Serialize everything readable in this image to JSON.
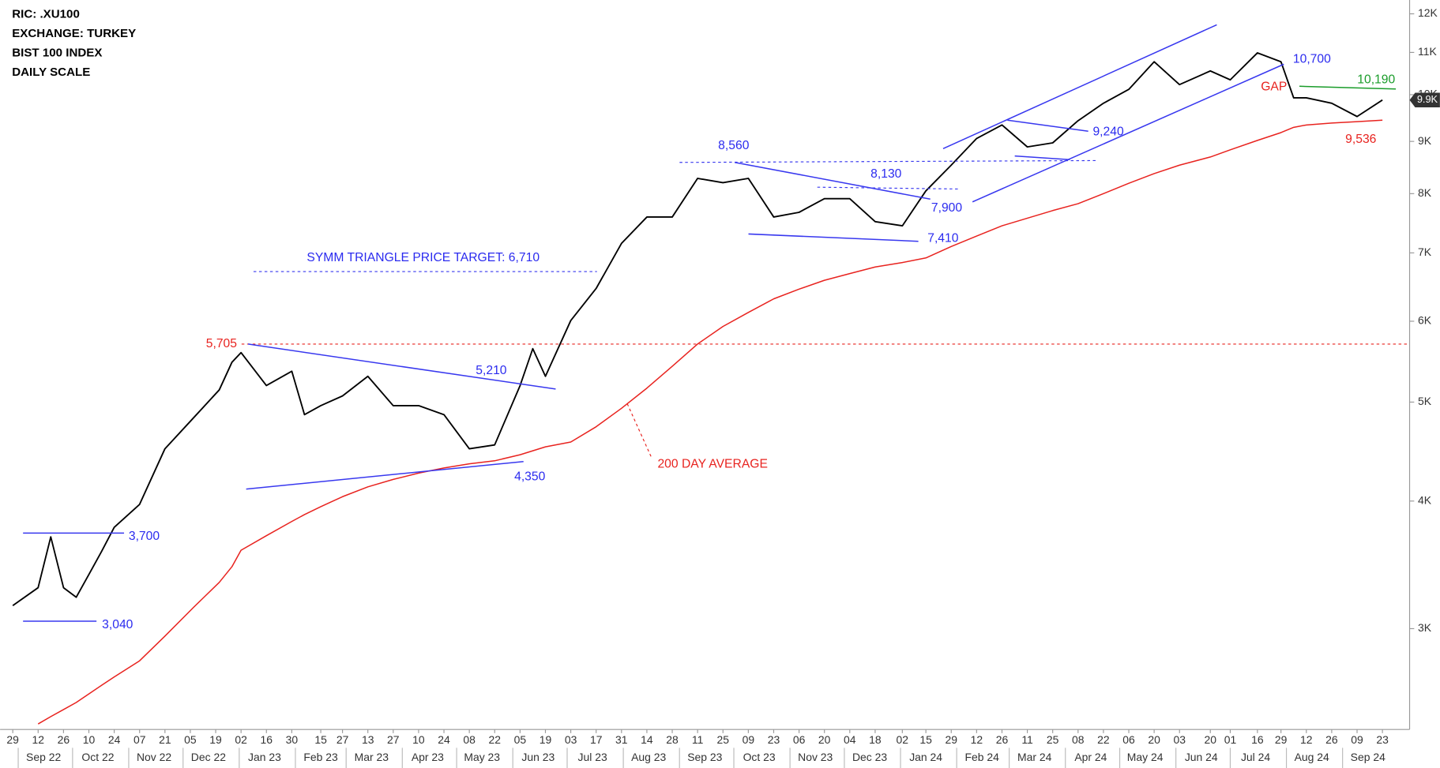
{
  "info": [
    "RIC: .XU100",
    "EXCHANGE: TURKEY",
    "BIST 100 INDEX",
    "DAILY SCALE"
  ],
  "chart_data": {
    "type": "line",
    "log_scale": true,
    "grid": false,
    "xlim": [
      "2022-08-22",
      "2024-10-08"
    ],
    "ylim": [
      2390,
      12380
    ],
    "yticks": [
      {
        "value": 3000,
        "label": "3K"
      },
      {
        "value": 4000,
        "label": "4K"
      },
      {
        "value": 5000,
        "label": "5K"
      },
      {
        "value": 6000,
        "label": "6K"
      },
      {
        "value": 7000,
        "label": "7K"
      },
      {
        "value": 8000,
        "label": "8K"
      },
      {
        "value": 9000,
        "label": "9K"
      },
      {
        "value": 10000,
        "label": "10K"
      },
      {
        "value": 11000,
        "label": "11K"
      },
      {
        "value": 12000,
        "label": "12K"
      }
    ],
    "xticks": [
      {
        "value": "2022-08-29",
        "label": "29"
      },
      {
        "value": "2022-09-12",
        "label": "12"
      },
      {
        "value": "2022-09-26",
        "label": "26"
      },
      {
        "value": "2022-10-10",
        "label": "10"
      },
      {
        "value": "2022-10-24",
        "label": "24"
      },
      {
        "value": "2022-11-07",
        "label": "07"
      },
      {
        "value": "2022-11-21",
        "label": "21"
      },
      {
        "value": "2022-12-05",
        "label": "05"
      },
      {
        "value": "2022-12-19",
        "label": "19"
      },
      {
        "value": "2023-01-02",
        "label": "02"
      },
      {
        "value": "2023-01-16",
        "label": "16"
      },
      {
        "value": "2023-01-30",
        "label": "30"
      },
      {
        "value": "2023-02-15",
        "label": "15"
      },
      {
        "value": "2023-02-27",
        "label": "27"
      },
      {
        "value": "2023-03-13",
        "label": "13"
      },
      {
        "value": "2023-03-27",
        "label": "27"
      },
      {
        "value": "2023-04-10",
        "label": "10"
      },
      {
        "value": "2023-04-24",
        "label": "24"
      },
      {
        "value": "2023-05-08",
        "label": "08"
      },
      {
        "value": "2023-05-22",
        "label": "22"
      },
      {
        "value": "2023-06-05",
        "label": "05"
      },
      {
        "value": "2023-06-19",
        "label": "19"
      },
      {
        "value": "2023-07-03",
        "label": "03"
      },
      {
        "value": "2023-07-17",
        "label": "17"
      },
      {
        "value": "2023-07-31",
        "label": "31"
      },
      {
        "value": "2023-08-14",
        "label": "14"
      },
      {
        "value": "2023-08-28",
        "label": "28"
      },
      {
        "value": "2023-09-11",
        "label": "11"
      },
      {
        "value": "2023-09-25",
        "label": "25"
      },
      {
        "value": "2023-10-09",
        "label": "09"
      },
      {
        "value": "2023-10-23",
        "label": "23"
      },
      {
        "value": "2023-11-06",
        "label": "06"
      },
      {
        "value": "2023-11-20",
        "label": "20"
      },
      {
        "value": "2023-12-04",
        "label": "04"
      },
      {
        "value": "2023-12-18",
        "label": "18"
      },
      {
        "value": "2024-01-02",
        "label": "02"
      },
      {
        "value": "2024-01-15",
        "label": "15"
      },
      {
        "value": "2024-01-29",
        "label": "29"
      },
      {
        "value": "2024-02-12",
        "label": "12"
      },
      {
        "value": "2024-02-26",
        "label": "26"
      },
      {
        "value": "2024-03-11",
        "label": "11"
      },
      {
        "value": "2024-03-25",
        "label": "25"
      },
      {
        "value": "2024-04-08",
        "label": "08"
      },
      {
        "value": "2024-04-22",
        "label": "22"
      },
      {
        "value": "2024-05-06",
        "label": "06"
      },
      {
        "value": "2024-05-20",
        "label": "20"
      },
      {
        "value": "2024-06-03",
        "label": "03"
      },
      {
        "value": "2024-06-20",
        "label": "20"
      },
      {
        "value": "2024-07-01",
        "label": "01"
      },
      {
        "value": "2024-07-16",
        "label": "16"
      },
      {
        "value": "2024-07-29",
        "label": "29"
      },
      {
        "value": "2024-08-12",
        "label": "12"
      },
      {
        "value": "2024-08-26",
        "label": "26"
      },
      {
        "value": "2024-09-09",
        "label": "09"
      },
      {
        "value": "2024-09-23",
        "label": "23"
      }
    ],
    "month_ticks": [
      {
        "value": "2022-09-15",
        "label": "Sep 22"
      },
      {
        "value": "2022-10-15",
        "label": "Oct 22"
      },
      {
        "value": "2022-11-15",
        "label": "Nov 22"
      },
      {
        "value": "2022-12-15",
        "label": "Dec 22"
      },
      {
        "value": "2023-01-15",
        "label": "Jan 23"
      },
      {
        "value": "2023-02-15",
        "label": "Feb 23"
      },
      {
        "value": "2023-03-15",
        "label": "Mar 23"
      },
      {
        "value": "2023-04-15",
        "label": "Apr 23"
      },
      {
        "value": "2023-05-15",
        "label": "May 23"
      },
      {
        "value": "2023-06-15",
        "label": "Jun 23"
      },
      {
        "value": "2023-07-15",
        "label": "Jul 23"
      },
      {
        "value": "2023-08-15",
        "label": "Aug 23"
      },
      {
        "value": "2023-09-15",
        "label": "Sep 23"
      },
      {
        "value": "2023-10-15",
        "label": "Oct 23"
      },
      {
        "value": "2023-11-15",
        "label": "Nov 23"
      },
      {
        "value": "2023-12-15",
        "label": "Dec 23"
      },
      {
        "value": "2024-01-15",
        "label": "Jan 24"
      },
      {
        "value": "2024-02-15",
        "label": "Feb 24"
      },
      {
        "value": "2024-03-15",
        "label": "Mar 24"
      },
      {
        "value": "2024-04-15",
        "label": "Apr 24"
      },
      {
        "value": "2024-05-15",
        "label": "May 24"
      },
      {
        "value": "2024-06-15",
        "label": "Jun 24"
      },
      {
        "value": "2024-07-15",
        "label": "Jul 24"
      },
      {
        "value": "2024-08-15",
        "label": "Aug 24"
      },
      {
        "value": "2024-09-15",
        "label": "Sep 24"
      }
    ],
    "x": [
      "2022-08-29",
      "2022-09-12",
      "2022-09-19",
      "2022-09-26",
      "2022-10-03",
      "2022-10-10",
      "2022-10-17",
      "2022-10-24",
      "2022-11-07",
      "2022-11-21",
      "2022-12-07",
      "2022-12-21",
      "2022-12-28",
      "2023-01-02",
      "2023-01-16",
      "2023-01-30",
      "2023-02-06",
      "2023-02-15",
      "2023-02-27",
      "2023-03-13",
      "2023-03-27",
      "2023-04-10",
      "2023-04-24",
      "2023-05-08",
      "2023-05-22",
      "2023-06-05",
      "2023-06-12",
      "2023-06-19",
      "2023-07-03",
      "2023-07-17",
      "2023-07-31",
      "2023-08-14",
      "2023-08-28",
      "2023-09-11",
      "2023-09-25",
      "2023-10-09",
      "2023-10-23",
      "2023-11-06",
      "2023-11-20",
      "2023-12-04",
      "2023-12-18",
      "2024-01-02",
      "2024-01-15",
      "2024-01-29",
      "2024-02-12",
      "2024-02-26",
      "2024-03-11",
      "2024-03-25",
      "2024-04-08",
      "2024-04-22",
      "2024-05-06",
      "2024-05-20",
      "2024-06-03",
      "2024-06-20",
      "2024-07-01",
      "2024-07-16",
      "2024-07-29",
      "2024-08-05",
      "2024-08-12",
      "2024-08-26",
      "2024-09-09",
      "2024-09-23"
    ],
    "series": [
      {
        "color": "#000000",
        "values": [
          3160,
          3290,
          3690,
          3290,
          3220,
          3390,
          3570,
          3770,
          3970,
          4500,
          4830,
          5140,
          5470,
          5590,
          5190,
          5360,
          4860,
          4960,
          5070,
          5300,
          4960,
          4960,
          4860,
          4500,
          4540,
          5190,
          5640,
          5300,
          6010,
          6460,
          7150,
          7590,
          7590,
          8280,
          8200,
          8280,
          7590,
          7670,
          7910,
          7910,
          7510,
          7440,
          8050,
          8530,
          9060,
          9340,
          8890,
          8970,
          9430,
          9810,
          10120,
          10770,
          10230,
          10550,
          10340,
          10990,
          10770,
          9930,
          9930,
          9810,
          9520,
          9880
        ]
      },
      {
        "color": "#e8231f",
        "values": [
          null,
          2420,
          2460,
          2500,
          2540,
          2590,
          2640,
          2690,
          2790,
          2950,
          3150,
          3330,
          3450,
          3580,
          3700,
          3820,
          3880,
          3950,
          4040,
          4130,
          4200,
          4260,
          4310,
          4350,
          4380,
          4440,
          4480,
          4520,
          4570,
          4730,
          4930,
          5160,
          5420,
          5700,
          5930,
          6120,
          6310,
          6450,
          6580,
          6680,
          6780,
          6850,
          6920,
          7100,
          7270,
          7440,
          7570,
          7700,
          7820,
          8000,
          8190,
          8370,
          8530,
          8690,
          8830,
          9020,
          9180,
          9290,
          9340,
          9380,
          9410,
          9440
        ]
      }
    ],
    "price_tag": "9.9K",
    "annotations": [
      {
        "text": "3,700"
      },
      {
        "text": "3,040"
      },
      {
        "text": "5,705"
      },
      {
        "text": "5,210"
      },
      {
        "text": "4,350"
      },
      {
        "text": "SYMM TRIANGLE PRICE TARGET: 6,710"
      },
      {
        "text": "200 DAY AVERAGE"
      },
      {
        "text": "8,560"
      },
      {
        "text": "8,130"
      },
      {
        "text": "7,900"
      },
      {
        "text": "7,410"
      },
      {
        "text": "9,240"
      },
      {
        "text": "10,700"
      },
      {
        "text": "GAP"
      },
      {
        "text": "10,190"
      },
      {
        "text": "9,536"
      }
    ]
  }
}
